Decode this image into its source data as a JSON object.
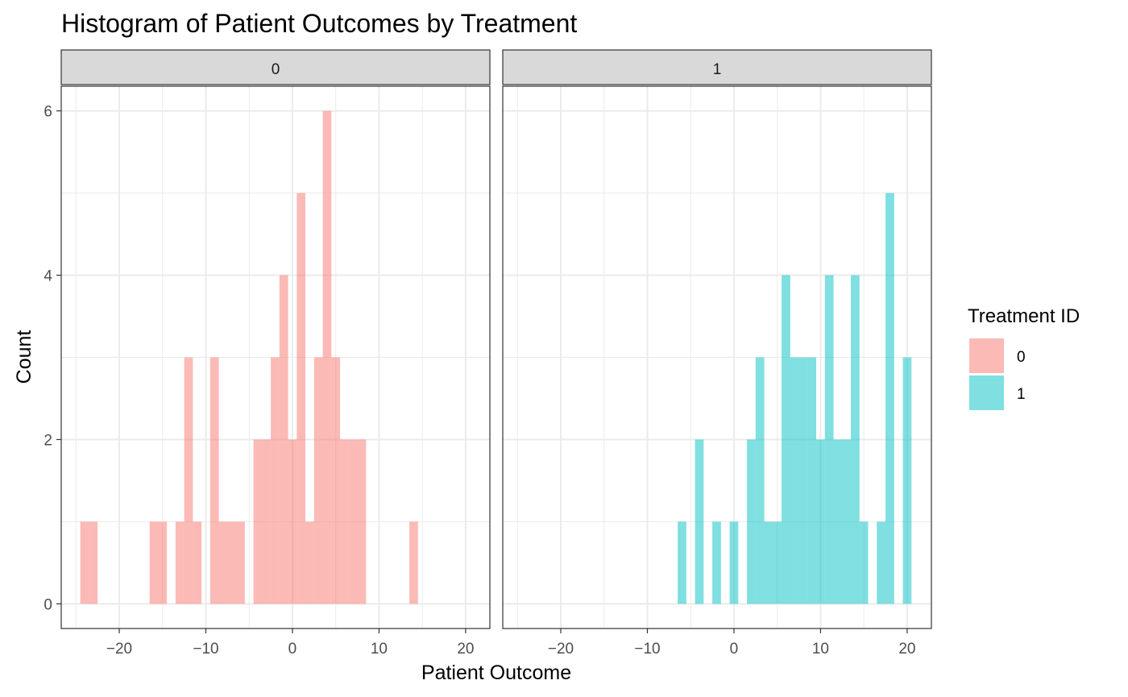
{
  "chart_data": {
    "type": "bar",
    "title": "Histogram of Patient Outcomes by Treatment",
    "xlabel": "Patient Outcome",
    "ylabel": "Count",
    "xlim": [
      -26.7,
      22.8
    ],
    "ylim": [
      -0.3,
      6.3
    ],
    "grid": true,
    "x_ticks": [
      "-20",
      "-10",
      "0",
      "10",
      "20"
    ],
    "x_tick_values": [
      -20,
      -10,
      0,
      10,
      20
    ],
    "y_ticks": [
      "0",
      "2",
      "4",
      "6"
    ],
    "y_tick_values": [
      0,
      2,
      4,
      6
    ],
    "bin_width": 1,
    "legend": {
      "title": "Treatment ID",
      "position": "right",
      "entries": [
        {
          "label": "0",
          "color": "#F8766D"
        },
        {
          "label": "1",
          "color": "#00BFC4"
        }
      ]
    },
    "panels": [
      {
        "strip_label": "0",
        "series_label": "0",
        "color": "#F8766D",
        "bin_centers": [
          -24,
          -23,
          -16,
          -15,
          -13,
          -12,
          -11,
          -9,
          -8,
          -7,
          -6,
          -4,
          -3,
          -2,
          -1,
          0,
          1,
          2,
          3,
          4,
          5,
          6,
          7,
          8,
          14
        ],
        "counts": [
          1,
          1,
          1,
          1,
          1,
          3,
          1,
          3,
          1,
          1,
          1,
          2,
          2,
          3,
          4,
          2,
          5,
          1,
          3,
          6,
          3,
          2,
          2,
          2,
          1
        ]
      },
      {
        "strip_label": "1",
        "series_label": "1",
        "color": "#00BFC4",
        "bin_centers": [
          -6,
          -4,
          -2,
          0,
          2,
          3,
          4,
          5,
          6,
          7,
          8,
          9,
          10,
          11,
          12,
          13,
          14,
          15,
          17,
          18,
          20
        ],
        "counts": [
          1,
          2,
          1,
          1,
          2,
          3,
          1,
          1,
          4,
          3,
          3,
          3,
          2,
          4,
          2,
          2,
          4,
          1,
          1,
          5,
          3
        ]
      }
    ]
  }
}
